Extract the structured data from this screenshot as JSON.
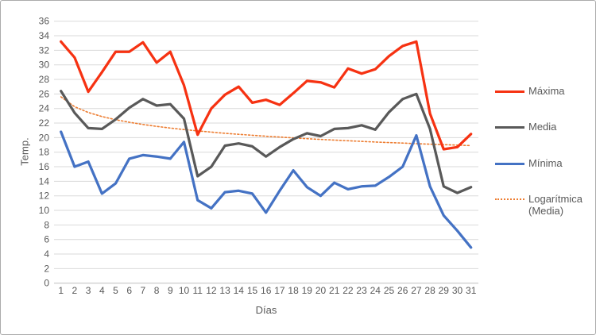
{
  "chart_data": {
    "type": "line",
    "title": "",
    "xlabel": "Días",
    "ylabel": "Temp.",
    "ylim": [
      0,
      36
    ],
    "ytick_step": 2,
    "grid": true,
    "legend_position": "right",
    "x": [
      1,
      2,
      3,
      4,
      5,
      6,
      7,
      8,
      9,
      10,
      11,
      12,
      13,
      14,
      15,
      16,
      17,
      18,
      19,
      20,
      21,
      22,
      23,
      24,
      25,
      26,
      27,
      28,
      29,
      30,
      31
    ],
    "series": [
      {
        "name": "Máxima",
        "color": "#f63212",
        "style": "solid",
        "values": [
          33.2,
          31.0,
          26.3,
          29.0,
          31.8,
          31.8,
          33.1,
          30.3,
          31.8,
          27.2,
          20.4,
          24.0,
          25.9,
          27.0,
          24.8,
          25.2,
          24.5,
          26.1,
          27.8,
          27.6,
          26.9,
          29.5,
          28.8,
          29.4,
          31.2,
          32.6,
          33.2,
          23.3,
          18.4,
          18.7,
          20.5
        ]
      },
      {
        "name": "Media",
        "color": "#595959",
        "style": "solid",
        "values": [
          26.4,
          23.4,
          21.3,
          21.2,
          22.5,
          24.1,
          25.3,
          24.4,
          24.6,
          22.6,
          14.7,
          16.0,
          18.9,
          19.2,
          18.8,
          17.4,
          18.7,
          19.8,
          20.6,
          20.2,
          21.2,
          21.3,
          21.7,
          21.1,
          23.5,
          25.3,
          26.0,
          21.2,
          13.3,
          12.4,
          13.2
        ]
      },
      {
        "name": "Mínima",
        "color": "#4472c4",
        "style": "solid",
        "values": [
          20.8,
          16.0,
          16.7,
          12.3,
          13.7,
          17.1,
          17.6,
          17.4,
          17.1,
          19.4,
          11.4,
          10.3,
          12.5,
          12.7,
          12.3,
          9.7,
          12.7,
          15.5,
          13.2,
          12.0,
          13.8,
          12.9,
          13.3,
          13.4,
          14.6,
          16.0,
          20.3,
          13.3,
          9.3,
          7.2,
          4.9
        ]
      },
      {
        "name": "Logarítmica (Media)",
        "color": "#ed7d31",
        "style": "dotted",
        "values": [
          25.6,
          24.25,
          23.46,
          22.9,
          22.46,
          22.11,
          21.81,
          21.55,
          21.32,
          21.11,
          20.92,
          20.76,
          20.6,
          20.46,
          20.32,
          20.19,
          20.08,
          19.96,
          19.86,
          19.76,
          19.66,
          19.57,
          19.48,
          19.4,
          19.32,
          19.25,
          19.17,
          19.1,
          19.04,
          18.97,
          18.91
        ]
      }
    ],
    "colors": {
      "gridline": "#d9d9d9",
      "axis_line": "#bfbfbf",
      "tick_text": "#595959",
      "frame_border": "#ababab"
    }
  }
}
